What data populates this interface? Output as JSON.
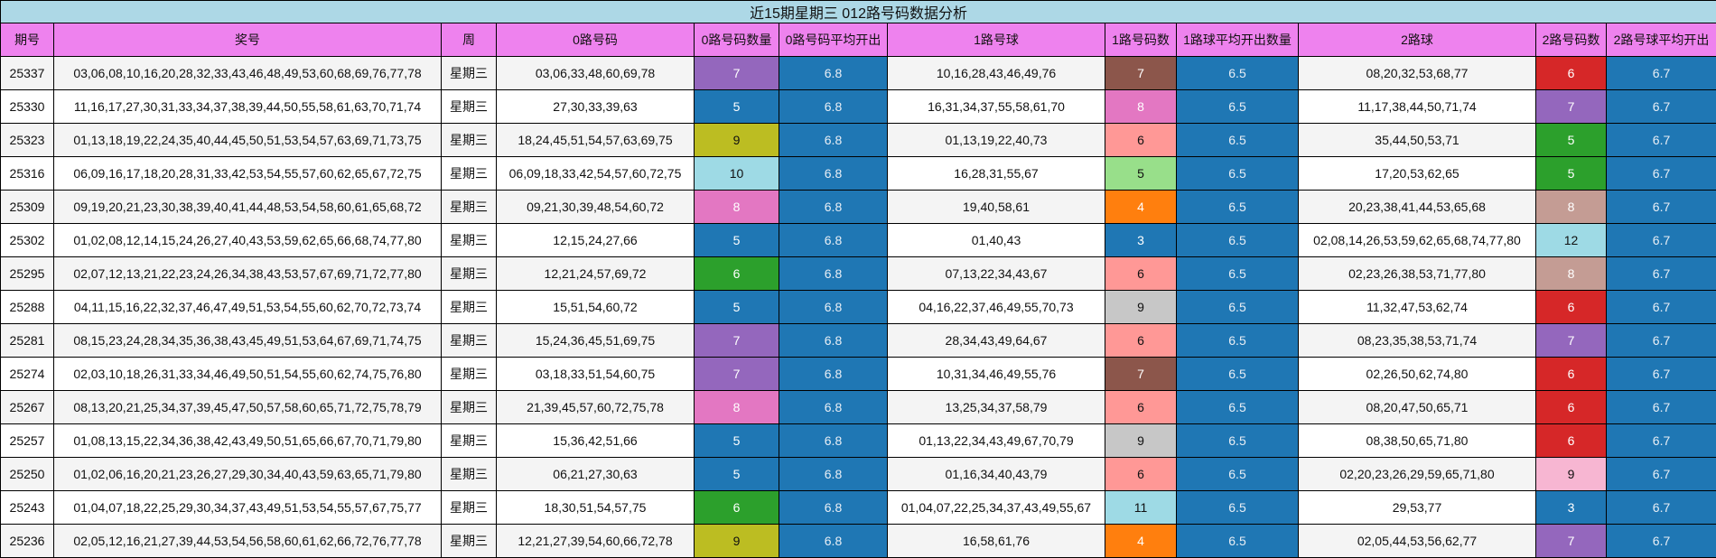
{
  "title": "近15期星期三 012路号码数据分析",
  "columns": [
    "期号",
    "奖号",
    "周",
    "0路号码",
    "0路号码数量",
    "0路号码平均开出",
    "1路号球",
    "1路号码数",
    "1路球平均开出数量",
    "2路球",
    "2路号码数",
    "2路号球平均开出"
  ],
  "colors": {
    "title_bg": "#add8e6",
    "header_bg": "#ee82ee",
    "avg_bg": "#1f77b4",
    "count_palette": {
      "3": "#1f77b4",
      "4": "#ff7f0e",
      "5_blue": "#1f77b4",
      "5_green": "#2ca02c",
      "5_lightgreen": "#98df8a",
      "6_red": "#d62728",
      "6_green": "#2ca02c",
      "6_salmon": "#ff9896",
      "7_purple": "#9467bd",
      "7_brown": "#8c564b",
      "8_pink": "#e377c2",
      "8_tan": "#c49c94",
      "9_olive": "#bcbd22",
      "9_gray": "#c7c7c7",
      "9_lightpink": "#f7b6d2",
      "10": "#9edae5",
      "11": "#9edae5",
      "12": "#9edae5"
    }
  },
  "rows": [
    {
      "issue": "25337",
      "numbers": "03,06,08,10,16,20,28,32,33,43,46,48,49,53,60,68,69,76,77,78",
      "weekday": "星期三",
      "r0": "03,06,33,48,60,69,78",
      "r0_count": "7",
      "r0_color": "#9467bd",
      "r0_avg": "6.8",
      "r1": "10,16,28,43,46,49,76",
      "r1_count": "7",
      "r1_color": "#8c564b",
      "r1_avg": "6.5",
      "r2": "08,20,32,53,68,77",
      "r2_count": "6",
      "r2_color": "#d62728",
      "r2_avg": "6.7"
    },
    {
      "issue": "25330",
      "numbers": "11,16,17,27,30,31,33,34,37,38,39,44,50,55,58,61,63,70,71,74",
      "weekday": "星期三",
      "r0": "27,30,33,39,63",
      "r0_count": "5",
      "r0_color": "#1f77b4",
      "r0_avg": "6.8",
      "r1": "16,31,34,37,55,58,61,70",
      "r1_count": "8",
      "r1_color": "#e377c2",
      "r1_avg": "6.5",
      "r2": "11,17,38,44,50,71,74",
      "r2_count": "7",
      "r2_color": "#9467bd",
      "r2_avg": "6.7"
    },
    {
      "issue": "25323",
      "numbers": "01,13,18,19,22,24,35,40,44,45,50,51,53,54,57,63,69,71,73,75",
      "weekday": "星期三",
      "r0": "18,24,45,51,54,57,63,69,75",
      "r0_count": "9",
      "r0_color": "#bcbd22",
      "r0_avg": "6.8",
      "r1": "01,13,19,22,40,73",
      "r1_count": "6",
      "r1_color": "#ff9896",
      "r1_avg": "6.5",
      "r2": "35,44,50,53,71",
      "r2_count": "5",
      "r2_color": "#2ca02c",
      "r2_avg": "6.7"
    },
    {
      "issue": "25316",
      "numbers": "06,09,16,17,18,20,28,31,33,42,53,54,55,57,60,62,65,67,72,75",
      "weekday": "星期三",
      "r0": "06,09,18,33,42,54,57,60,72,75",
      "r0_count": "10",
      "r0_color": "#9edae5",
      "r0_avg": "6.8",
      "r1": "16,28,31,55,67",
      "r1_count": "5",
      "r1_color": "#98df8a",
      "r1_avg": "6.5",
      "r2": "17,20,53,62,65",
      "r2_count": "5",
      "r2_color": "#2ca02c",
      "r2_avg": "6.7"
    },
    {
      "issue": "25309",
      "numbers": "09,19,20,21,23,30,38,39,40,41,44,48,53,54,58,60,61,65,68,72",
      "weekday": "星期三",
      "r0": "09,21,30,39,48,54,60,72",
      "r0_count": "8",
      "r0_color": "#e377c2",
      "r0_avg": "6.8",
      "r1": "19,40,58,61",
      "r1_count": "4",
      "r1_color": "#ff7f0e",
      "r1_avg": "6.5",
      "r2": "20,23,38,41,44,53,65,68",
      "r2_count": "8",
      "r2_color": "#c49c94",
      "r2_avg": "6.7"
    },
    {
      "issue": "25302",
      "numbers": "01,02,08,12,14,15,24,26,27,40,43,53,59,62,65,66,68,74,77,80",
      "weekday": "星期三",
      "r0": "12,15,24,27,66",
      "r0_count": "5",
      "r0_color": "#1f77b4",
      "r0_avg": "6.8",
      "r1": "01,40,43",
      "r1_count": "3",
      "r1_color": "#1f77b4",
      "r1_avg": "6.5",
      "r2": "02,08,14,26,53,59,62,65,68,74,77,80",
      "r2_count": "12",
      "r2_color": "#9edae5",
      "r2_avg": "6.7"
    },
    {
      "issue": "25295",
      "numbers": "02,07,12,13,21,22,23,24,26,34,38,43,53,57,67,69,71,72,77,80",
      "weekday": "星期三",
      "r0": "12,21,24,57,69,72",
      "r0_count": "6",
      "r0_color": "#2ca02c",
      "r0_avg": "6.8",
      "r1": "07,13,22,34,43,67",
      "r1_count": "6",
      "r1_color": "#ff9896",
      "r1_avg": "6.5",
      "r2": "02,23,26,38,53,71,77,80",
      "r2_count": "8",
      "r2_color": "#c49c94",
      "r2_avg": "6.7"
    },
    {
      "issue": "25288",
      "numbers": "04,11,15,16,22,32,37,46,47,49,51,53,54,55,60,62,70,72,73,74",
      "weekday": "星期三",
      "r0": "15,51,54,60,72",
      "r0_count": "5",
      "r0_color": "#1f77b4",
      "r0_avg": "6.8",
      "r1": "04,16,22,37,46,49,55,70,73",
      "r1_count": "9",
      "r1_color": "#c7c7c7",
      "r1_avg": "6.5",
      "r2": "11,32,47,53,62,74",
      "r2_count": "6",
      "r2_color": "#d62728",
      "r2_avg": "6.7"
    },
    {
      "issue": "25281",
      "numbers": "08,15,23,24,28,34,35,36,38,43,45,49,51,53,64,67,69,71,74,75",
      "weekday": "星期三",
      "r0": "15,24,36,45,51,69,75",
      "r0_count": "7",
      "r0_color": "#9467bd",
      "r0_avg": "6.8",
      "r1": "28,34,43,49,64,67",
      "r1_count": "6",
      "r1_color": "#ff9896",
      "r1_avg": "6.5",
      "r2": "08,23,35,38,53,71,74",
      "r2_count": "7",
      "r2_color": "#9467bd",
      "r2_avg": "6.7"
    },
    {
      "issue": "25274",
      "numbers": "02,03,10,18,26,31,33,34,46,49,50,51,54,55,60,62,74,75,76,80",
      "weekday": "星期三",
      "r0": "03,18,33,51,54,60,75",
      "r0_count": "7",
      "r0_color": "#9467bd",
      "r0_avg": "6.8",
      "r1": "10,31,34,46,49,55,76",
      "r1_count": "7",
      "r1_color": "#8c564b",
      "r1_avg": "6.5",
      "r2": "02,26,50,62,74,80",
      "r2_count": "6",
      "r2_color": "#d62728",
      "r2_avg": "6.7"
    },
    {
      "issue": "25267",
      "numbers": "08,13,20,21,25,34,37,39,45,47,50,57,58,60,65,71,72,75,78,79",
      "weekday": "星期三",
      "r0": "21,39,45,57,60,72,75,78",
      "r0_count": "8",
      "r0_color": "#e377c2",
      "r0_avg": "6.8",
      "r1": "13,25,34,37,58,79",
      "r1_count": "6",
      "r1_color": "#ff9896",
      "r1_avg": "6.5",
      "r2": "08,20,47,50,65,71",
      "r2_count": "6",
      "r2_color": "#d62728",
      "r2_avg": "6.7"
    },
    {
      "issue": "25257",
      "numbers": "01,08,13,15,22,34,36,38,42,43,49,50,51,65,66,67,70,71,79,80",
      "weekday": "星期三",
      "r0": "15,36,42,51,66",
      "r0_count": "5",
      "r0_color": "#1f77b4",
      "r0_avg": "6.8",
      "r1": "01,13,22,34,43,49,67,70,79",
      "r1_count": "9",
      "r1_color": "#c7c7c7",
      "r1_avg": "6.5",
      "r2": "08,38,50,65,71,80",
      "r2_count": "6",
      "r2_color": "#d62728",
      "r2_avg": "6.7"
    },
    {
      "issue": "25250",
      "numbers": "01,02,06,16,20,21,23,26,27,29,30,34,40,43,59,63,65,71,79,80",
      "weekday": "星期三",
      "r0": "06,21,27,30,63",
      "r0_count": "5",
      "r0_color": "#1f77b4",
      "r0_avg": "6.8",
      "r1": "01,16,34,40,43,79",
      "r1_count": "6",
      "r1_color": "#ff9896",
      "r1_avg": "6.5",
      "r2": "02,20,23,26,29,59,65,71,80",
      "r2_count": "9",
      "r2_color": "#f7b6d2",
      "r2_avg": "6.7"
    },
    {
      "issue": "25243",
      "numbers": "01,04,07,18,22,25,29,30,34,37,43,49,51,53,54,55,57,67,75,77",
      "weekday": "星期三",
      "r0": "18,30,51,54,57,75",
      "r0_count": "6",
      "r0_color": "#2ca02c",
      "r0_avg": "6.8",
      "r1": "01,04,07,22,25,34,37,43,49,55,67",
      "r1_count": "11",
      "r1_color": "#9edae5",
      "r1_avg": "6.5",
      "r2": "29,53,77",
      "r2_count": "3",
      "r2_color": "#1f77b4",
      "r2_avg": "6.7"
    },
    {
      "issue": "25236",
      "numbers": "02,05,12,16,21,27,39,44,53,54,56,58,60,61,62,66,72,76,77,78",
      "weekday": "星期三",
      "r0": "12,21,27,39,54,60,66,72,78",
      "r0_count": "9",
      "r0_color": "#bcbd22",
      "r0_avg": "6.8",
      "r1": "16,58,61,76",
      "r1_count": "4",
      "r1_color": "#ff7f0e",
      "r1_avg": "6.5",
      "r2": "02,05,44,53,56,62,77",
      "r2_count": "7",
      "r2_color": "#9467bd",
      "r2_avg": "6.7"
    }
  ]
}
